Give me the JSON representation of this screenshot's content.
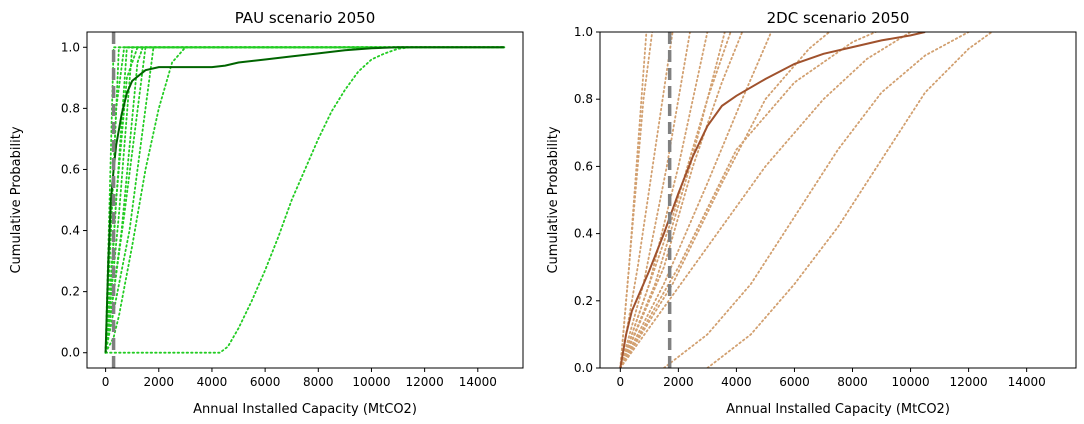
{
  "chart_data": [
    {
      "type": "line",
      "title": "PAU scenario 2050",
      "xlabel": "Annual Installed Capacity (MtCO2)",
      "ylabel": "Cumulative Probability",
      "xlim": [
        -700,
        15700
      ],
      "ylim": [
        -0.05,
        1.05
      ],
      "xticks": [
        0,
        2000,
        4000,
        6000,
        8000,
        10000,
        12000,
        14000
      ],
      "xtick_labels": [
        "0",
        "2000",
        "4000",
        "6000",
        "8000",
        "10000",
        "12000",
        "14000"
      ],
      "yticks": [
        0.0,
        0.2,
        0.4,
        0.6,
        0.8,
        1.0
      ],
      "ytick_labels": [
        "0.0",
        "0.2",
        "0.4",
        "0.6",
        "0.8",
        "1.0"
      ],
      "grid": false,
      "vline": {
        "x": 300,
        "style": "dashed",
        "color": "#808080"
      },
      "main_series": {
        "color": "#006400",
        "points": [
          [
            0,
            0
          ],
          [
            100,
            0.3
          ],
          [
            200,
            0.5
          ],
          [
            300,
            0.6
          ],
          [
            400,
            0.68
          ],
          [
            600,
            0.78
          ],
          [
            800,
            0.85
          ],
          [
            1000,
            0.89
          ],
          [
            1500,
            0.925
          ],
          [
            2000,
            0.935
          ],
          [
            3000,
            0.935
          ],
          [
            4000,
            0.935
          ],
          [
            4500,
            0.94
          ],
          [
            5000,
            0.95
          ],
          [
            6000,
            0.96
          ],
          [
            7000,
            0.97
          ],
          [
            8000,
            0.98
          ],
          [
            9000,
            0.99
          ],
          [
            10000,
            0.997
          ],
          [
            11000,
            1.0
          ],
          [
            12000,
            1.0
          ],
          [
            15000,
            1.0
          ]
        ]
      },
      "dotted_color": "#22cc22",
      "dotted_series": [
        {
          "points": [
            [
              0,
              0
            ],
            [
              150,
              0.5
            ],
            [
              300,
              1.0
            ],
            [
              15000,
              1.0
            ]
          ]
        },
        {
          "points": [
            [
              0,
              0
            ],
            [
              250,
              0.5
            ],
            [
              500,
              1.0
            ],
            [
              15000,
              1.0
            ]
          ]
        },
        {
          "points": [
            [
              0,
              0
            ],
            [
              200,
              0.4
            ],
            [
              400,
              0.8
            ],
            [
              700,
              1.0
            ],
            [
              15000,
              1.0
            ]
          ]
        },
        {
          "points": [
            [
              0,
              0
            ],
            [
              400,
              0.5
            ],
            [
              800,
              1.0
            ],
            [
              15000,
              1.0
            ]
          ]
        },
        {
          "points": [
            [
              0,
              0
            ],
            [
              500,
              0.45
            ],
            [
              1000,
              1.0
            ],
            [
              15000,
              1.0
            ]
          ]
        },
        {
          "points": [
            [
              0,
              0
            ],
            [
              600,
              0.4
            ],
            [
              1200,
              0.95
            ],
            [
              1400,
              1.0
            ],
            [
              15000,
              1.0
            ]
          ]
        },
        {
          "points": [
            [
              0,
              0
            ],
            [
              700,
              0.45
            ],
            [
              1500,
              1.0
            ],
            [
              15000,
              1.0
            ]
          ]
        },
        {
          "points": [
            [
              0,
              0
            ],
            [
              900,
              0.4
            ],
            [
              1800,
              1.0
            ],
            [
              15000,
              1.0
            ]
          ]
        },
        {
          "points": [
            [
              0,
              0
            ],
            [
              300,
              0.05
            ],
            [
              500,
              0.12
            ],
            [
              1000,
              0.35
            ],
            [
              1500,
              0.6
            ],
            [
              2000,
              0.8
            ],
            [
              2500,
              0.95
            ],
            [
              3000,
              1.0
            ],
            [
              15000,
              1.0
            ]
          ]
        },
        {
          "points": [
            [
              0,
              0
            ],
            [
              200,
              0.2
            ],
            [
              400,
              0.5
            ],
            [
              800,
              0.9
            ],
            [
              1200,
              1.0
            ],
            [
              15000,
              1.0
            ]
          ]
        },
        {
          "points": [
            [
              0,
              0
            ],
            [
              4300,
              0.0
            ],
            [
              4600,
              0.02
            ],
            [
              5000,
              0.08
            ],
            [
              5500,
              0.17
            ],
            [
              6000,
              0.27
            ],
            [
              6500,
              0.38
            ],
            [
              7000,
              0.5
            ],
            [
              7500,
              0.6
            ],
            [
              8000,
              0.7
            ],
            [
              8500,
              0.79
            ],
            [
              9000,
              0.86
            ],
            [
              9500,
              0.92
            ],
            [
              10000,
              0.96
            ],
            [
              10500,
              0.98
            ],
            [
              11000,
              0.995
            ],
            [
              11500,
              1.0
            ],
            [
              12000,
              1.0
            ],
            [
              15000,
              1.0
            ]
          ]
        }
      ]
    },
    {
      "type": "line",
      "title": "2DC scenario 2050",
      "xlabel": "Annual Installed Capacity (MtCO2)",
      "ylabel": "Cumulative Probability",
      "xlim": [
        -700,
        15700
      ],
      "ylim": [
        0.0,
        1.0
      ],
      "xticks": [
        0,
        2000,
        4000,
        6000,
        8000,
        10000,
        12000,
        14000
      ],
      "xtick_labels": [
        "0",
        "2000",
        "4000",
        "6000",
        "8000",
        "10000",
        "12000",
        "14000"
      ],
      "yticks": [
        0.0,
        0.2,
        0.4,
        0.6,
        0.8,
        1.0
      ],
      "ytick_labels": [
        "0.0",
        "0.2",
        "0.4",
        "0.6",
        "0.8",
        "1.0"
      ],
      "grid": false,
      "vline": {
        "x": 1700,
        "style": "dashed",
        "color": "#808080"
      },
      "main_series": {
        "color": "#a0522d",
        "points": [
          [
            0,
            0
          ],
          [
            200,
            0.1
          ],
          [
            400,
            0.17
          ],
          [
            800,
            0.25
          ],
          [
            1000,
            0.29
          ],
          [
            1500,
            0.4
          ],
          [
            2000,
            0.52
          ],
          [
            2500,
            0.63
          ],
          [
            3000,
            0.72
          ],
          [
            3500,
            0.78
          ],
          [
            4000,
            0.81
          ],
          [
            5000,
            0.86
          ],
          [
            6000,
            0.905
          ],
          [
            7000,
            0.935
          ],
          [
            8000,
            0.955
          ],
          [
            9000,
            0.975
          ],
          [
            10000,
            0.99
          ],
          [
            10500,
            1.0
          ]
        ]
      },
      "dotted_color": "#d2a070",
      "dotted_series": [
        {
          "points": [
            [
              0,
              0
            ],
            [
              300,
              0.3
            ],
            [
              600,
              0.65
            ],
            [
              900,
              1.0
            ]
          ]
        },
        {
          "points": [
            [
              0,
              0
            ],
            [
              600,
              0.3
            ],
            [
              1200,
              0.65
            ],
            [
              1800,
              1.0
            ]
          ]
        },
        {
          "points": [
            [
              0,
              0
            ],
            [
              800,
              0.25
            ],
            [
              1600,
              0.6
            ],
            [
              2400,
              1.0
            ]
          ]
        },
        {
          "points": [
            [
              0,
              0
            ],
            [
              1000,
              0.25
            ],
            [
              2000,
              0.6
            ],
            [
              3000,
              1.0
            ]
          ]
        },
        {
          "points": [
            [
              0,
              0
            ],
            [
              1200,
              0.25
            ],
            [
              2400,
              0.6
            ],
            [
              3600,
              1.0
            ]
          ]
        },
        {
          "points": [
            [
              0,
              0
            ],
            [
              1500,
              0.3
            ],
            [
              2500,
              0.6
            ],
            [
              3500,
              0.85
            ],
            [
              4200,
              1.0
            ]
          ]
        },
        {
          "points": [
            [
              0,
              0
            ],
            [
              1500,
              0.25
            ],
            [
              3000,
              0.55
            ],
            [
              4200,
              0.8
            ],
            [
              5200,
              1.0
            ]
          ]
        },
        {
          "points": [
            [
              0,
              0
            ],
            [
              1800,
              0.25
            ],
            [
              3500,
              0.55
            ],
            [
              5000,
              0.8
            ],
            [
              6500,
              0.95
            ],
            [
              7200,
              1.0
            ]
          ]
        },
        {
          "points": [
            [
              0,
              0
            ],
            [
              2000,
              0.3
            ],
            [
              4000,
              0.65
            ],
            [
              6000,
              0.85
            ],
            [
              8000,
              0.97
            ],
            [
              8800,
              1.0
            ]
          ]
        },
        {
          "points": [
            [
              0,
              0
            ],
            [
              2500,
              0.3
            ],
            [
              5000,
              0.6
            ],
            [
              7000,
              0.8
            ],
            [
              8500,
              0.92
            ],
            [
              10000,
              1.0
            ]
          ]
        },
        {
          "points": [
            [
              1500,
              0
            ],
            [
              3000,
              0.1
            ],
            [
              4500,
              0.25
            ],
            [
              6000,
              0.45
            ],
            [
              7500,
              0.65
            ],
            [
              9000,
              0.82
            ],
            [
              10500,
              0.93
            ],
            [
              12000,
              1.0
            ]
          ]
        },
        {
          "points": [
            [
              3000,
              0
            ],
            [
              4500,
              0.1
            ],
            [
              6000,
              0.25
            ],
            [
              7500,
              0.42
            ],
            [
              9000,
              0.62
            ],
            [
              10500,
              0.82
            ],
            [
              12000,
              0.95
            ],
            [
              12800,
              1.0
            ]
          ]
        },
        {
          "points": [
            [
              0,
              0
            ],
            [
              400,
              0.4
            ],
            [
              800,
              0.8
            ],
            [
              1100,
              1.0
            ]
          ]
        },
        {
          "points": [
            [
              0,
              0
            ],
            [
              1800,
              0.45
            ],
            [
              3000,
              0.8
            ],
            [
              3800,
              1.0
            ]
          ]
        }
      ]
    }
  ]
}
